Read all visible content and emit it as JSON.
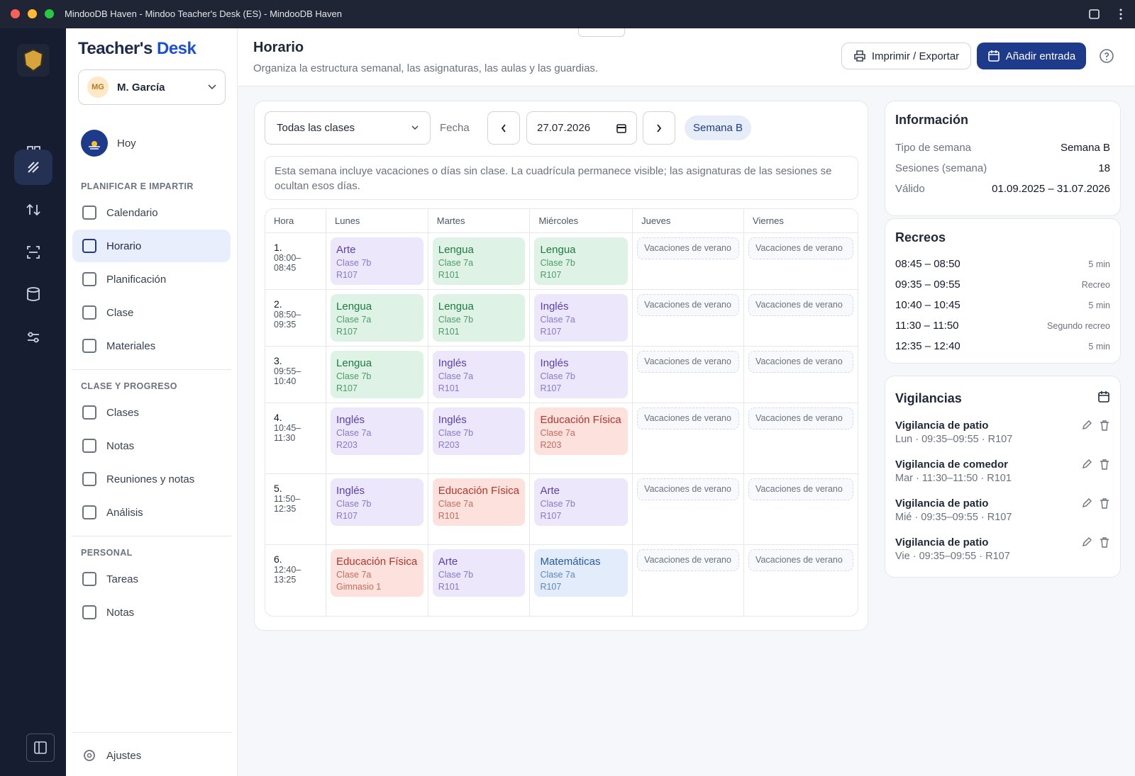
{
  "window": {
    "title": "MindooDB Haven - Mindoo Teacher's Desk (ES) - MindooDB Haven"
  },
  "sidebar": {
    "brand_a": "Teacher's",
    "brand_b": "Desk",
    "user": {
      "initials": "MG",
      "name": "M. García"
    },
    "today": "Hoy",
    "sections": [
      {
        "title": "PLANIFICAR E IMPARTIR",
        "items": [
          "Calendario",
          "Horario",
          "Planificación",
          "Clase",
          "Materiales"
        ]
      },
      {
        "title": "CLASE Y PROGRESO",
        "items": [
          "Clases",
          "Notas",
          "Reuniones y notas",
          "Análisis"
        ]
      },
      {
        "title": "PERSONAL",
        "items": [
          "Tareas",
          "Notas"
        ]
      }
    ],
    "settings": "Ajustes"
  },
  "header": {
    "title": "Horario",
    "subtitle": "Organiza la estructura semanal, las asignaturas, las aulas y las guardias.",
    "print_button": "Imprimir / Exportar",
    "add_button": "Añadir entrada"
  },
  "toolbar": {
    "class_filter": "Todas las clases",
    "date_label": "Fecha",
    "date": "27.07.2026",
    "week": "Semana B"
  },
  "notice": "Esta semana incluye vacaciones o días sin clase. La cuadrícula permanece visible; las asignaturas de las sesiones se ocultan esos días.",
  "timetable": {
    "columns": [
      "Hora",
      "Lunes",
      "Martes",
      "Miércoles",
      "Jueves",
      "Viernes"
    ],
    "rows": [
      {
        "period": "1.",
        "time": "08:00–08:45",
        "cells": [
          {
            "subject": "Arte",
            "class": "Clase 7b",
            "room": "R107",
            "color": "purple"
          },
          {
            "subject": "Lengua",
            "class": "Clase 7a",
            "room": "R101",
            "color": "green"
          },
          {
            "subject": "Lengua",
            "class": "Clase 7b",
            "room": "R107",
            "color": "green"
          },
          {
            "note": "Vacaciones de verano"
          },
          {
            "note": "Vacaciones de verano"
          }
        ]
      },
      {
        "period": "2.",
        "time": "08:50–09:35",
        "cells": [
          {
            "subject": "Lengua",
            "class": "Clase 7a",
            "room": "R107",
            "color": "green"
          },
          {
            "subject": "Lengua",
            "class": "Clase 7b",
            "room": "R101",
            "color": "green"
          },
          {
            "subject": "Inglés",
            "class": "Clase 7a",
            "room": "R107",
            "color": "purple"
          },
          {
            "note": "Vacaciones de verano"
          },
          {
            "note": "Vacaciones de verano"
          }
        ]
      },
      {
        "period": "3.",
        "time": "09:55–10:40",
        "cells": [
          {
            "subject": "Lengua",
            "class": "Clase 7b",
            "room": "R107",
            "color": "green"
          },
          {
            "subject": "Inglés",
            "class": "Clase 7a",
            "room": "R101",
            "color": "purple"
          },
          {
            "subject": "Inglés",
            "class": "Clase 7b",
            "room": "R107",
            "color": "purple"
          },
          {
            "note": "Vacaciones de verano"
          },
          {
            "note": "Vacaciones de verano"
          }
        ]
      },
      {
        "period": "4.",
        "time": "10:45–11:30",
        "cells": [
          {
            "subject": "Inglés",
            "class": "Clase 7a",
            "room": "R203",
            "color": "purple"
          },
          {
            "subject": "Inglés",
            "class": "Clase 7b",
            "room": "R203",
            "color": "purple"
          },
          {
            "subject": "Educación Física",
            "class": "Clase 7a",
            "room": "R203",
            "color": "red"
          },
          {
            "note": "Vacaciones de verano"
          },
          {
            "note": "Vacaciones de verano"
          }
        ]
      },
      {
        "period": "5.",
        "time": "11:50–12:35",
        "cells": [
          {
            "subject": "Inglés",
            "class": "Clase 7b",
            "room": "R107",
            "color": "purple"
          },
          {
            "subject": "Educación Física",
            "class": "Clase 7a",
            "room": "R101",
            "color": "red"
          },
          {
            "subject": "Arte",
            "class": "Clase 7b",
            "room": "R107",
            "color": "purple"
          },
          {
            "note": "Vacaciones de verano"
          },
          {
            "note": "Vacaciones de verano"
          }
        ]
      },
      {
        "period": "6.",
        "time": "12:40–13:25",
        "cells": [
          {
            "subject": "Educación Física",
            "class": "Clase 7a",
            "room": "Gimnasio 1",
            "color": "red"
          },
          {
            "subject": "Arte",
            "class": "Clase 7b",
            "room": "R101",
            "color": "purple"
          },
          {
            "subject": "Matemáticas",
            "class": "Clase 7a",
            "room": "R107",
            "color": "blue"
          },
          {
            "note": "Vacaciones de verano"
          },
          {
            "note": "Vacaciones de verano"
          }
        ]
      }
    ]
  },
  "info": {
    "title": "Información",
    "rows": [
      [
        "Tipo de semana",
        "Semana B"
      ],
      [
        "Sesiones (semana)",
        "18"
      ],
      [
        "Válido",
        "01.09.2025 – 31.07.2026"
      ]
    ]
  },
  "breaks": {
    "title": "Recreos",
    "rows": [
      [
        "08:45 – 08:50",
        "5 min"
      ],
      [
        "09:35 – 09:55",
        "Recreo"
      ],
      [
        "10:40 – 10:45",
        "5 min"
      ],
      [
        "11:30 – 11:50",
        "Segundo recreo"
      ],
      [
        "12:35 – 12:40",
        "5 min"
      ]
    ]
  },
  "supervision": {
    "title": "Vigilancias",
    "items": [
      {
        "title": "Vigilancia de patio",
        "detail": "Lun · 09:35–09:55 · R107"
      },
      {
        "title": "Vigilancia de comedor",
        "detail": "Mar · 11:30–11:50 · R101"
      },
      {
        "title": "Vigilancia de patio",
        "detail": "Mié · 09:35–09:55 · R107"
      },
      {
        "title": "Vigilancia de patio",
        "detail": "Vie · 09:35–09:55 · R107"
      }
    ]
  }
}
